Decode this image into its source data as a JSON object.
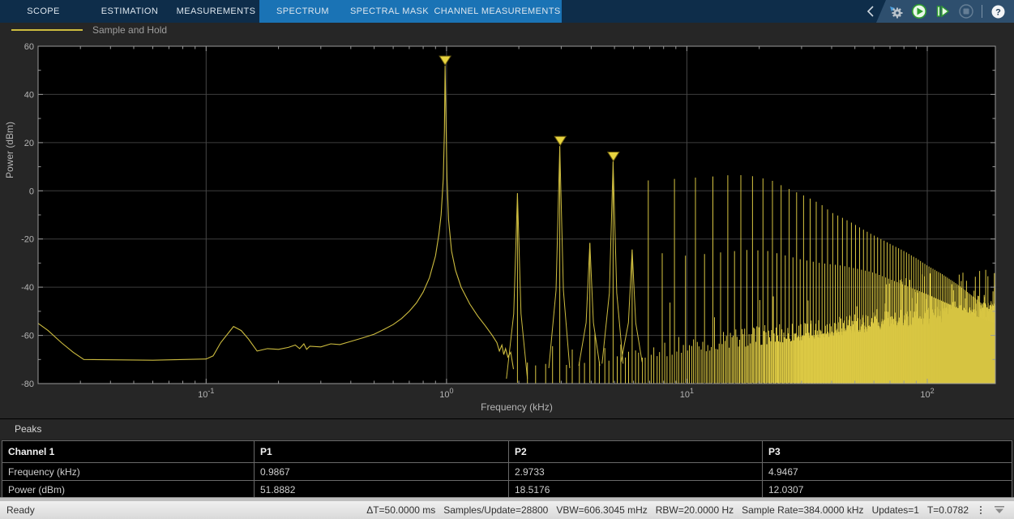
{
  "toolbar": {
    "tabs": [
      {
        "label": "SCOPE",
        "group": "main"
      },
      {
        "label": "ESTIMATION",
        "group": "main"
      },
      {
        "label": "MEASUREMENTS",
        "group": "main"
      },
      {
        "label": "SPECTRUM",
        "group": "contextual"
      },
      {
        "label": "SPECTRAL MASK",
        "group": "contextual"
      },
      {
        "label": "CHANNEL MEASUREMENTS",
        "group": "contextual"
      }
    ],
    "icons": [
      "collapse-chevron-icon",
      "settings-gear-icon",
      "run-icon",
      "step-forward-icon",
      "stop-icon",
      "help-icon"
    ],
    "colors": {
      "bar": "#0e2d4a",
      "contextual_group": "#1a73b5",
      "icon_strip": "#2e4f6e"
    }
  },
  "legend": {
    "series_label": "Sample and Hold",
    "swatch_color": "#cdbc3f"
  },
  "chart_data": {
    "type": "line",
    "title": "",
    "xlabel": "Frequency (kHz)",
    "ylabel": "Power (dBm)",
    "xscale": "log",
    "xlim": [
      0.02,
      192
    ],
    "ylim": [
      -80,
      60
    ],
    "grid": true,
    "series_name": "Sample and Hold",
    "line_color": "#cdbc3f",
    "background": "#000000",
    "xticks": [
      {
        "value": 0.1,
        "base": "10",
        "exp": "-1"
      },
      {
        "value": 1,
        "base": "10",
        "exp": "0"
      },
      {
        "value": 10,
        "base": "10",
        "exp": "1"
      },
      {
        "value": 100,
        "base": "10",
        "exp": "2"
      }
    ],
    "yticks": [
      60,
      40,
      20,
      0,
      -20,
      -40,
      -60,
      -80
    ],
    "fundamental_khz": 0.9867,
    "peaks": [
      {
        "label": "P1",
        "freq_khz": 0.9867,
        "power_dbm": 51.8882
      },
      {
        "label": "P2",
        "freq_khz": 2.9733,
        "power_dbm": 18.5176
      },
      {
        "label": "P3",
        "freq_khz": 4.9467,
        "power_dbm": 12.0307
      }
    ],
    "marker_color": "#e8d440",
    "baseline_points": [
      [
        0.02,
        -55
      ],
      [
        0.022,
        -58
      ],
      [
        0.025,
        -63
      ],
      [
        0.028,
        -67
      ],
      [
        0.031,
        -70
      ],
      [
        0.06,
        -70.3
      ],
      [
        0.1,
        -69.8
      ],
      [
        0.107,
        -68.5
      ],
      [
        0.115,
        -63
      ],
      [
        0.13,
        -56.3
      ],
      [
        0.14,
        -58
      ],
      [
        0.15,
        -61.5
      ],
      [
        0.163,
        -66.5
      ],
      [
        0.18,
        -65.5
      ],
      [
        0.2,
        -65.8
      ],
      [
        0.22,
        -65
      ],
      [
        0.235,
        -64
      ],
      [
        0.245,
        -65.5
      ],
      [
        0.255,
        -63.5
      ],
      [
        0.262,
        -65.8
      ],
      [
        0.27,
        -64.5
      ],
      [
        0.3,
        -64.8
      ],
      [
        0.33,
        -63.5
      ],
      [
        0.36,
        -63.8
      ],
      [
        0.4,
        -62.5
      ],
      [
        0.45,
        -61
      ],
      [
        0.5,
        -59.5
      ],
      [
        0.55,
        -57.5
      ],
      [
        0.6,
        -55.5
      ],
      [
        0.65,
        -53
      ],
      [
        0.7,
        -50
      ],
      [
        0.75,
        -46.5
      ],
      [
        0.8,
        -42
      ],
      [
        0.85,
        -36
      ],
      [
        0.9,
        -27
      ],
      [
        0.93,
        -18
      ],
      [
        0.95,
        -10
      ],
      [
        0.97,
        5
      ],
      [
        0.98,
        25
      ],
      [
        0.9867,
        51.9
      ],
      [
        0.995,
        30
      ],
      [
        1.005,
        5
      ],
      [
        1.02,
        -12
      ],
      [
        1.05,
        -25
      ],
      [
        1.09,
        -33
      ],
      [
        1.15,
        -40
      ],
      [
        1.25,
        -47
      ],
      [
        1.35,
        -52
      ],
      [
        1.45,
        -56
      ],
      [
        1.55,
        -60
      ],
      [
        1.62,
        -63
      ],
      [
        1.66,
        -66.5
      ],
      [
        1.7,
        -64
      ],
      [
        1.73,
        -68
      ],
      [
        1.76,
        -65.5
      ],
      [
        1.8,
        -69
      ],
      [
        1.85,
        -67
      ],
      [
        1.9,
        -74
      ]
    ],
    "odd_harmonic_envelope": [
      [
        3,
        18.5
      ],
      [
        5,
        12
      ],
      [
        7,
        4
      ],
      [
        9,
        5
      ],
      [
        11,
        5.5
      ],
      [
        13,
        6
      ],
      [
        15,
        6.5
      ],
      [
        17,
        6.5
      ],
      [
        19,
        6
      ],
      [
        21,
        5
      ],
      [
        23,
        4
      ],
      [
        25,
        2
      ],
      [
        27,
        0.5
      ],
      [
        30,
        -1.5
      ],
      [
        33,
        -3.5
      ],
      [
        36,
        -5.5
      ],
      [
        40,
        -9
      ],
      [
        45,
        -11.5
      ],
      [
        50,
        -14
      ],
      [
        55,
        -16.5
      ],
      [
        60,
        -18.5
      ],
      [
        70,
        -22
      ],
      [
        80,
        -25
      ],
      [
        90,
        -28
      ],
      [
        100,
        -31
      ],
      [
        115,
        -34.5
      ],
      [
        130,
        -38
      ],
      [
        145,
        -41.5
      ],
      [
        160,
        -45
      ],
      [
        175,
        -48
      ],
      [
        192,
        -51
      ]
    ],
    "even_harmonic_envelope": [
      [
        2,
        -1
      ],
      [
        4,
        -22
      ],
      [
        6,
        -24.5
      ],
      [
        8,
        -26
      ],
      [
        10,
        -27
      ],
      [
        14,
        -25.5
      ],
      [
        18,
        -24.5
      ],
      [
        22,
        -25
      ],
      [
        26,
        -27
      ],
      [
        30,
        -28.5
      ],
      [
        36,
        -30
      ],
      [
        44,
        -31
      ],
      [
        52,
        -32.5
      ],
      [
        60,
        -34
      ],
      [
        80,
        -39
      ],
      [
        100,
        -43
      ],
      [
        120,
        -46.5
      ],
      [
        140,
        -49.5
      ],
      [
        160,
        -52
      ],
      [
        180,
        -54
      ],
      [
        192,
        -55
      ]
    ],
    "noise_floor_envelope": [
      [
        1.9,
        -79
      ],
      [
        2.2,
        -75
      ],
      [
        3,
        -73.5
      ],
      [
        4,
        -72.5
      ],
      [
        6,
        -71
      ],
      [
        10,
        -68.5
      ],
      [
        15,
        -66.5
      ],
      [
        25,
        -64
      ],
      [
        40,
        -61.5
      ],
      [
        60,
        -59.5
      ],
      [
        90,
        -58
      ],
      [
        130,
        -56.5
      ],
      [
        192,
        -55.5
      ]
    ]
  },
  "peaks": {
    "title": "Peaks",
    "header": [
      "Channel 1",
      "P1",
      "P2",
      "P3"
    ],
    "rows": [
      {
        "label": "Frequency (kHz)",
        "values": [
          "0.9867",
          "2.9733",
          "4.9467"
        ]
      },
      {
        "label": "Power (dBm)",
        "values": [
          "51.8882",
          "18.5176",
          "12.0307"
        ]
      }
    ]
  },
  "status_bar": {
    "state": "Ready",
    "fields": [
      "ΔT=50.0000 ms",
      "Samples/Update=28800",
      "VBW=606.3045 mHz",
      "RBW=20.0000 Hz",
      "Sample Rate=384.0000 kHz",
      "Updates=1",
      "T=0.0782"
    ],
    "icons": [
      "overflow-menu-icon",
      "dock-panel-icon"
    ]
  }
}
